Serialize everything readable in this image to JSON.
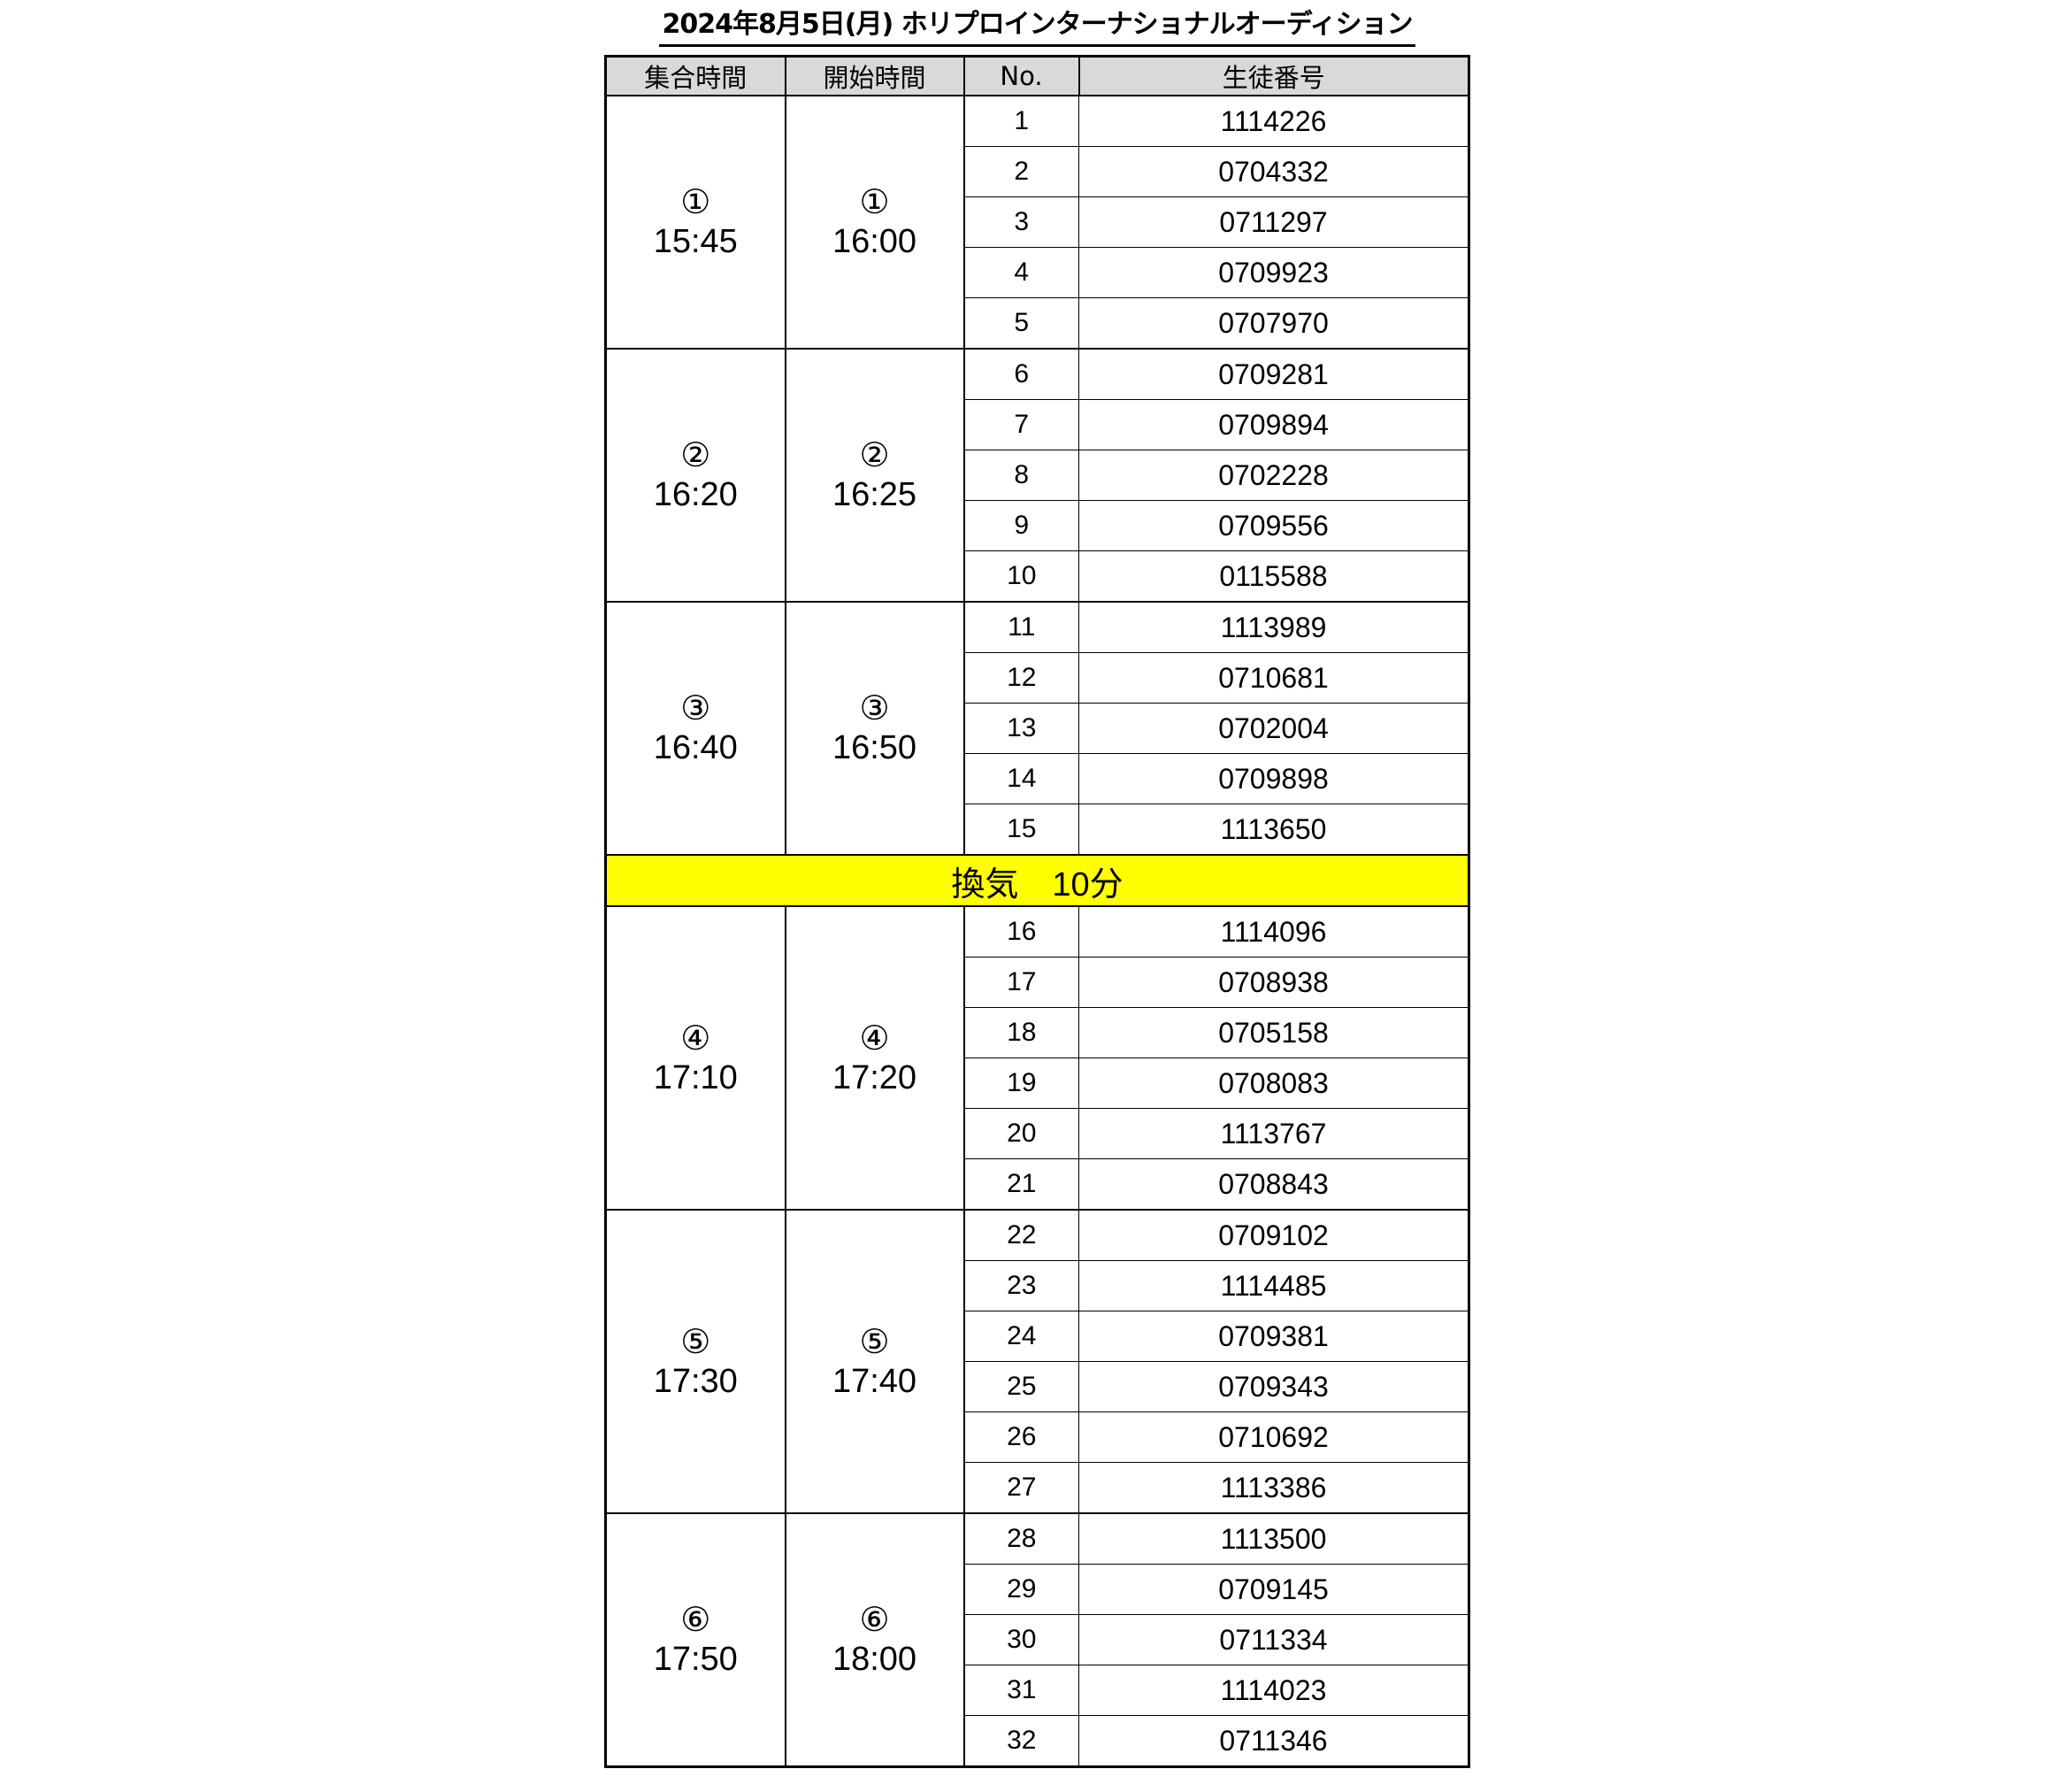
{
  "title": "2024年8月5日(月) ホリプロインターナショナルオーディション",
  "headers": [
    "集合時間",
    "開始時間",
    "No.",
    "生徒番号"
  ],
  "break_label": "換気　10分",
  "break_color": "#ffff00",
  "groups": [
    {
      "mark": "①",
      "gather": "15:45",
      "start": "16:00",
      "rows": [
        [
          "1",
          "1114226"
        ],
        [
          "2",
          "0704332"
        ],
        [
          "3",
          "0711297"
        ],
        [
          "4",
          "0709923"
        ],
        [
          "5",
          "0707970"
        ]
      ]
    },
    {
      "mark": "②",
      "gather": "16:20",
      "start": "16:25",
      "rows": [
        [
          "6",
          "0709281"
        ],
        [
          "7",
          "0709894"
        ],
        [
          "8",
          "0702228"
        ],
        [
          "9",
          "0709556"
        ],
        [
          "10",
          "0115588"
        ]
      ]
    },
    {
      "mark": "③",
      "gather": "16:40",
      "start": "16:50",
      "rows": [
        [
          "11",
          "1113989"
        ],
        [
          "12",
          "0710681"
        ],
        [
          "13",
          "0702004"
        ],
        [
          "14",
          "0709898"
        ],
        [
          "15",
          "1113650"
        ]
      ]
    },
    {
      "mark": "④",
      "gather": "17:10",
      "start": "17:20",
      "rows": [
        [
          "16",
          "1114096"
        ],
        [
          "17",
          "0708938"
        ],
        [
          "18",
          "0705158"
        ],
        [
          "19",
          "0708083"
        ],
        [
          "20",
          "1113767"
        ],
        [
          "21",
          "0708843"
        ]
      ]
    },
    {
      "mark": "⑤",
      "gather": "17:30",
      "start": "17:40",
      "rows": [
        [
          "22",
          "0709102"
        ],
        [
          "23",
          "1114485"
        ],
        [
          "24",
          "0709381"
        ],
        [
          "25",
          "0709343"
        ],
        [
          "26",
          "0710692"
        ],
        [
          "27",
          "1113386"
        ]
      ]
    },
    {
      "mark": "⑥",
      "gather": "17:50",
      "start": "18:00",
      "rows": [
        [
          "28",
          "1113500"
        ],
        [
          "29",
          "0709145"
        ],
        [
          "30",
          "0711334"
        ],
        [
          "31",
          "1114023"
        ],
        [
          "32",
          "0711346"
        ]
      ]
    }
  ]
}
